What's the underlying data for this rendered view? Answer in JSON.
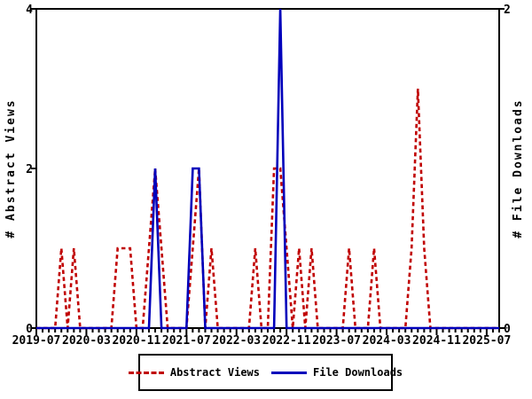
{
  "chart_data": {
    "type": "line",
    "title": "",
    "x_start": "2019-07",
    "n_months": 75,
    "x_tick_labels": [
      "2019-07",
      "2020-03",
      "2020-11",
      "2021-07",
      "2022-03",
      "2022-11",
      "2023-07",
      "2024-03",
      "2024-11",
      "2025-07"
    ],
    "x_major_interval_months": 8,
    "left_axis": {
      "label": "# Abstract Views",
      "ticks": [
        0,
        2,
        4
      ],
      "range": [
        0,
        4
      ]
    },
    "right_axis": {
      "label": "# File Downloads",
      "ticks": [
        0,
        2
      ],
      "range": [
        0,
        2
      ]
    },
    "grid": false,
    "legend_position": "bottom-center",
    "series": [
      {
        "name": "Abstract Views",
        "axis": "left",
        "style": "dashed",
        "color": "#c00000",
        "values": [
          0,
          0,
          0,
          0,
          1,
          0,
          1,
          0,
          0,
          0,
          0,
          0,
          0,
          1,
          1,
          1,
          0,
          0,
          1,
          2,
          1,
          0,
          0,
          0,
          0,
          1,
          2,
          0,
          1,
          0,
          0,
          0,
          0,
          0,
          0,
          1,
          0,
          0,
          2,
          2,
          1,
          0,
          1,
          0,
          1,
          0,
          0,
          0,
          0,
          0,
          1,
          0,
          0,
          0,
          1,
          0,
          0,
          0,
          0,
          0,
          1,
          3,
          1,
          0,
          0,
          0,
          0,
          0,
          0,
          0,
          0,
          0,
          0,
          0,
          0
        ],
        "nonzero_months": {
          "2019-11": 1,
          "2020-01": 1,
          "2020-08": 1,
          "2020-09": 1,
          "2020-10": 1,
          "2021-01": 1,
          "2021-02": 2,
          "2021-03": 1,
          "2021-08": 1,
          "2021-09": 2,
          "2021-11": 1,
          "2022-06": 1,
          "2022-09": 2,
          "2022-10": 2,
          "2022-11": 1,
          "2023-01": 1,
          "2023-03": 1,
          "2023-09": 1,
          "2024-01": 1,
          "2024-07": 1,
          "2024-08": 3,
          "2024-09": 1
        }
      },
      {
        "name": "File Downloads",
        "axis": "right",
        "style": "solid",
        "color": "#0000bb",
        "values": [
          0,
          0,
          0,
          0,
          0,
          0,
          0,
          0,
          0,
          0,
          0,
          0,
          0,
          0,
          0,
          0,
          0,
          0,
          0,
          1,
          0,
          0,
          0,
          0,
          0,
          1,
          1,
          0,
          0,
          0,
          0,
          0,
          0,
          0,
          0,
          0,
          0,
          0,
          0,
          2,
          0,
          0,
          0,
          0,
          0,
          0,
          0,
          0,
          0,
          0,
          0,
          0,
          0,
          0,
          0,
          0,
          0,
          0,
          0,
          0,
          0,
          0,
          0,
          0,
          0,
          0,
          0,
          0,
          0,
          0,
          0,
          0,
          0,
          0,
          0
        ],
        "nonzero_months": {
          "2021-02": 1,
          "2021-08": 1,
          "2021-09": 1,
          "2022-10": 2
        }
      }
    ],
    "legend": {
      "items": [
        "Abstract Views",
        "File Downloads"
      ]
    }
  }
}
